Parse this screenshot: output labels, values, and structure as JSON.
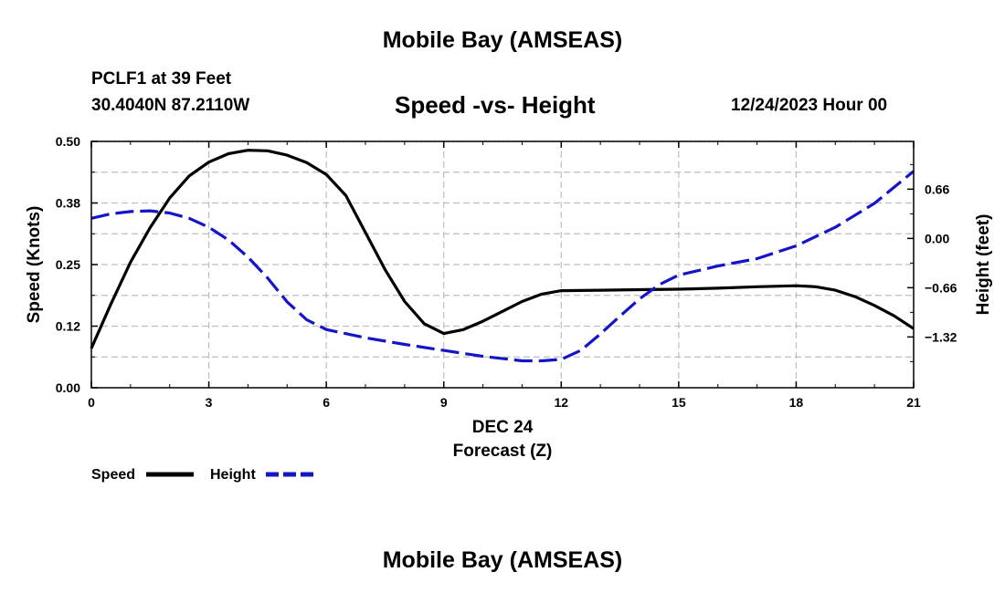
{
  "header": {
    "title_top": "Mobile Bay (AMSEAS)",
    "station": "PCLF1 at 39 Feet",
    "coords": "30.4040N  87.2110W",
    "datetime": "12/24/2023 Hour 00",
    "title_bottom": "Mobile Bay (AMSEAS)"
  },
  "colors": {
    "speed": "#000000",
    "height": "#1414c8",
    "grid": "#bfbfbf"
  },
  "chart_data": {
    "type": "line",
    "title": "Speed -vs- Height",
    "xlabel": "Forecast (Z)",
    "xsublabel": "DEC 24",
    "ylabel": "Speed (Knots)",
    "y2label": "Height (feet)",
    "xlim": [
      0,
      21
    ],
    "ylim": [
      0,
      0.5
    ],
    "y2lim": [
      -2.0,
      1.3
    ],
    "x_ticks": [
      0,
      3,
      6,
      9,
      12,
      15,
      18,
      21
    ],
    "x_tick_labels": [
      "0",
      "3",
      "6",
      "9",
      "12",
      "15",
      "18",
      "21"
    ],
    "y_ticks": [
      0,
      0.125,
      0.25,
      0.375,
      0.5
    ],
    "y_tick_labels": [
      "0.00",
      "0.12",
      "0.25",
      "0.38",
      "0.50"
    ],
    "y2_ticks": [
      -1.32,
      -0.66,
      0.0,
      0.66
    ],
    "y2_tick_labels": [
      "−1.32",
      "−0.66",
      "0.00",
      "0.66"
    ],
    "grid": true,
    "series": [
      {
        "name": "Speed",
        "axis": "left",
        "style": "solid",
        "x": [
          0,
          0.5,
          1,
          1.5,
          2,
          2.5,
          3,
          3.5,
          4,
          4.5,
          5,
          5.5,
          6,
          6.5,
          7,
          7.5,
          8,
          8.5,
          9,
          9.5,
          10,
          10.5,
          11,
          11.5,
          12,
          13,
          14,
          15,
          16,
          17,
          18,
          18.5,
          19,
          19.5,
          20,
          20.5,
          21
        ],
        "values": [
          0.08,
          0.17,
          0.255,
          0.325,
          0.385,
          0.43,
          0.458,
          0.475,
          0.482,
          0.481,
          0.472,
          0.457,
          0.433,
          0.39,
          0.315,
          0.24,
          0.175,
          0.13,
          0.11,
          0.118,
          0.135,
          0.155,
          0.175,
          0.19,
          0.197,
          0.198,
          0.199,
          0.2,
          0.202,
          0.205,
          0.207,
          0.205,
          0.198,
          0.185,
          0.167,
          0.146,
          0.12
        ]
      },
      {
        "name": "Height",
        "axis": "right",
        "style": "dashed",
        "x": [
          0,
          0.5,
          1,
          1.5,
          2,
          2.5,
          3,
          3.5,
          4,
          4.5,
          5,
          5.5,
          6,
          7,
          8,
          9,
          10,
          11,
          11.5,
          12,
          12.5,
          13,
          13.5,
          14,
          14.5,
          15,
          16,
          17,
          18,
          19,
          20,
          21
        ],
        "values": [
          0.27,
          0.33,
          0.36,
          0.37,
          0.34,
          0.27,
          0.15,
          -0.02,
          -0.25,
          -0.53,
          -0.85,
          -1.09,
          -1.22,
          -1.33,
          -1.42,
          -1.5,
          -1.58,
          -1.64,
          -1.64,
          -1.62,
          -1.5,
          -1.28,
          -1.04,
          -0.81,
          -0.62,
          -0.49,
          -0.37,
          -0.27,
          -0.1,
          0.15,
          0.47,
          0.9
        ]
      }
    ],
    "legend": [
      "Speed",
      "Height"
    ],
    "legend_position": "bottom-left"
  }
}
